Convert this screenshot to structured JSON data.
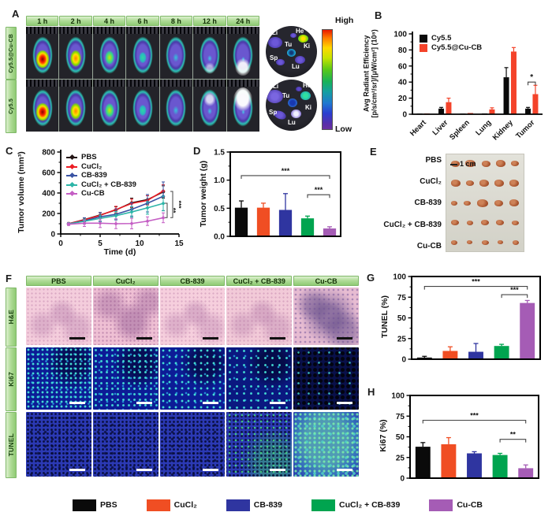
{
  "panels": {
    "A": {
      "label": "A",
      "row_labels": [
        "Cy5.5@Cu-CB",
        "Cy5.5"
      ],
      "timepoints": [
        "1 h",
        "2 h",
        "4 h",
        "6 h",
        "8 h",
        "12 h",
        "24 h"
      ],
      "organ_labels": [
        "Li",
        "He",
        "Tu",
        "Ki",
        "Sp",
        "Lu"
      ],
      "colorbar_high": "High",
      "colorbar_low": "Low"
    },
    "B": {
      "label": "B"
    },
    "C": {
      "label": "C"
    },
    "D": {
      "label": "D"
    },
    "E": {
      "label": "E",
      "row_labels": [
        "PBS",
        "CuCl₂",
        "CB-839",
        "CuCl₂ + CB-839",
        "Cu-CB"
      ],
      "scale_label": "1 cm"
    },
    "F": {
      "label": "F",
      "columns": [
        "PBS",
        "CuCl₂",
        "CB-839",
        "CuCl₂ + CB-839",
        "Cu-CB"
      ],
      "rows": [
        "H&E",
        "Ki67",
        "TUNEL"
      ]
    },
    "G": {
      "label": "G"
    },
    "H": {
      "label": "H"
    }
  },
  "chart_data": [
    {
      "id": "B",
      "type": "grouped-bar",
      "ylabel_line1": "Avg Radiant Efficiency",
      "ylabel_line2": "[p/s/cm²/sr]/[μW/cm²] (10⁸)",
      "categories": [
        "Heart",
        "Liver",
        "Spleen",
        "Lung",
        "Kidney",
        "Tumor"
      ],
      "series": [
        {
          "name": "Cy5.5",
          "color": "#0a0a0a",
          "values": [
            0.8,
            7,
            0.8,
            1,
            46,
            7
          ],
          "errors": [
            0.3,
            1.5,
            0.3,
            0.5,
            12,
            1.5
          ]
        },
        {
          "name": "Cy5.5@Cu-CB",
          "color": "#f4432a",
          "values": [
            1,
            15,
            1.5,
            6,
            78,
            25
          ],
          "errors": [
            0.4,
            5,
            0.5,
            2,
            5,
            11
          ]
        }
      ],
      "ylim": [
        0,
        100
      ],
      "yticks": [
        0,
        20,
        40,
        60,
        80,
        100
      ],
      "grid": false,
      "legend_position": "top-left",
      "significance": [
        {
          "label": "*",
          "category_index": 5,
          "y": 40
        }
      ]
    },
    {
      "id": "C",
      "type": "line",
      "ylabel": "Tumor volume (mm³)",
      "xlabel": "Time (d)",
      "x": [
        1,
        3,
        5,
        7,
        9,
        11,
        13
      ],
      "series": [
        {
          "name": "PBS",
          "color": "#231414",
          "values": [
            100,
            140,
            185,
            235,
            305,
            335,
            410
          ],
          "errors": [
            12,
            18,
            25,
            30,
            45,
            50,
            60
          ]
        },
        {
          "name": "CuCl₂",
          "color": "#ec1c24",
          "values": [
            100,
            138,
            182,
            238,
            298,
            328,
            420
          ],
          "errors": [
            12,
            18,
            28,
            32,
            42,
            45,
            60
          ]
        },
        {
          "name": "CB-839",
          "color": "#3a53a4",
          "values": [
            98,
            128,
            168,
            192,
            240,
            300,
            368
          ],
          "errors": [
            12,
            30,
            42,
            52,
            65,
            85,
            140
          ]
        },
        {
          "name": "CuCl₂ + CB-839",
          "color": "#2cb5a8",
          "values": [
            98,
            124,
            152,
            178,
            215,
            255,
            298
          ],
          "errors": [
            12,
            22,
            32,
            42,
            52,
            62,
            72
          ]
        },
        {
          "name": "Cu-CB",
          "color": "#c45ec4",
          "values": [
            95,
            105,
            105,
            100,
            102,
            125,
            158
          ],
          "errors": [
            12,
            32,
            42,
            48,
            52,
            42,
            48
          ]
        }
      ],
      "xlim": [
        0,
        15
      ],
      "ylim": [
        0,
        800
      ],
      "yticks": [
        0,
        200,
        400,
        600,
        800
      ],
      "xticks": [
        0,
        5,
        10,
        15
      ],
      "grid": false,
      "legend_position": "top-left",
      "significance": [
        {
          "label": "**",
          "from_value": 300,
          "to_value": 160,
          "dx": 5
        },
        {
          "label": "***",
          "from_value": 415,
          "to_value": 160,
          "dx": 12
        }
      ]
    },
    {
      "id": "D",
      "type": "bar",
      "ylabel": "Tumor weight (g)",
      "categories": [
        "PBS",
        "CuCl₂",
        "CB-839",
        "CuCl₂ + CB-839",
        "Cu-CB"
      ],
      "values": [
        0.51,
        0.51,
        0.47,
        0.32,
        0.14
      ],
      "errors": [
        0.12,
        0.08,
        0.29,
        0.04,
        0.03
      ],
      "colors": [
        "#0a0a0a",
        "#f04e23",
        "#2f35a0",
        "#00a44f",
        "#a55cb5"
      ],
      "ylim": [
        0,
        1.5
      ],
      "yticks": [
        "0.0",
        "0.5",
        "1.0",
        "1.5"
      ],
      "grid": false,
      "significance": [
        {
          "label": "***",
          "from": 0,
          "to": 4,
          "y": 1.08
        },
        {
          "label": "***",
          "from": 3,
          "to": 4,
          "y": 0.74
        }
      ]
    },
    {
      "id": "G",
      "type": "bar",
      "ylabel": "TUNEL  (%)",
      "categories": [
        "PBS",
        "CuCl₂",
        "CB-839",
        "CuCl₂ + CB-839",
        "Cu-CB"
      ],
      "values": [
        2,
        10,
        9,
        16,
        68
      ],
      "errors": [
        1.5,
        5,
        10,
        2,
        3
      ],
      "colors": [
        "#0a0a0a",
        "#f04e23",
        "#2f35a0",
        "#00a44f",
        "#a55cb5"
      ],
      "ylim": [
        0,
        100
      ],
      "yticks": [
        0,
        25,
        50,
        75,
        100
      ],
      "grid": false,
      "significance": [
        {
          "label": "***",
          "from": 0,
          "to": 4,
          "y": 88
        },
        {
          "label": "***",
          "from": 3,
          "to": 4,
          "y": 78
        }
      ]
    },
    {
      "id": "H",
      "type": "bar",
      "ylabel": "Ki67  (%)",
      "categories": [
        "PBS",
        "CuCl₂",
        "CB-839",
        "CuCl₂ + CB-839",
        "Cu-CB"
      ],
      "values": [
        38,
        41,
        30,
        28,
        12
      ],
      "errors": [
        5,
        8,
        2,
        2,
        4
      ],
      "colors": [
        "#0a0a0a",
        "#f04e23",
        "#2f35a0",
        "#00a44f",
        "#a55cb5"
      ],
      "ylim": [
        0,
        100
      ],
      "yticks": [
        0,
        25,
        50,
        75,
        100
      ],
      "grid": false,
      "significance": [
        {
          "label": "***",
          "from": 0,
          "to": 4,
          "y": 70
        },
        {
          "label": "**",
          "from": 3,
          "to": 4,
          "y": 47
        }
      ]
    }
  ],
  "legend": {
    "items": [
      {
        "label": "PBS",
        "color": "#0a0a0a"
      },
      {
        "label": "CuCl₂",
        "color": "#f04e23"
      },
      {
        "label": "CB-839",
        "color": "#2f35a0"
      },
      {
        "label": "CuCl₂ + CB-839",
        "color": "#00a44f"
      },
      {
        "label": "Cu-CB",
        "color": "#a55cb5"
      }
    ]
  }
}
